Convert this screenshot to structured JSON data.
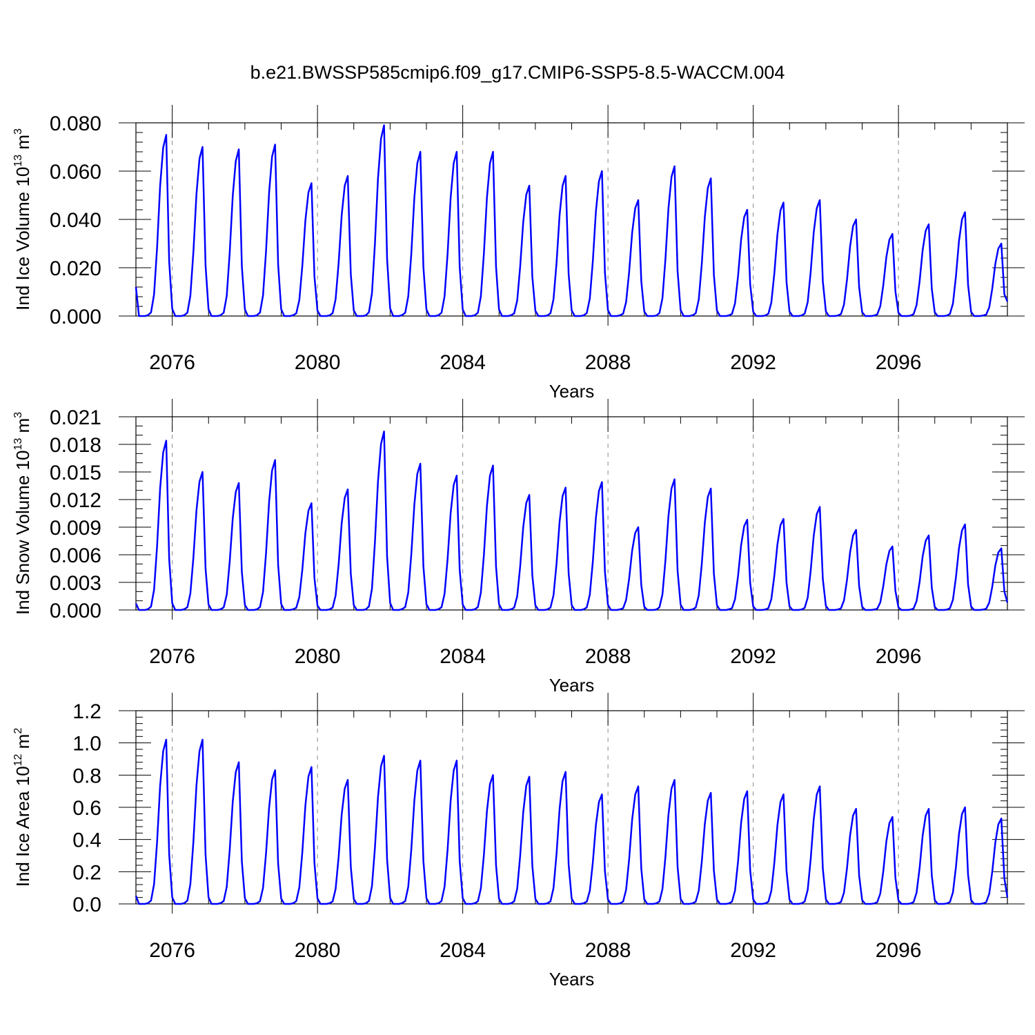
{
  "title": "b.e21.BWSSP585cmip6.f09_g17.CMIP6-SSP5-8.5-WACCM.004",
  "colors": {
    "line": "#0000ff",
    "axis": "#000000",
    "grid": "#888888"
  },
  "panels": [
    {
      "ylabel": {
        "text": "Ind Ice Volume 10",
        "sup": "13",
        "unit": " m",
        "unit_sup": "3"
      },
      "xlabel": "Years",
      "xticks": [
        "2076",
        "2080",
        "2084",
        "2088",
        "2092",
        "2096"
      ],
      "yticks": [
        "0.000",
        "0.020",
        "0.040",
        "0.060",
        "0.080"
      ]
    },
    {
      "ylabel": {
        "text": "Ind Snow Volume 10",
        "sup": "13",
        "unit": " m",
        "unit_sup": "3"
      },
      "xlabel": "Years",
      "xticks": [
        "2076",
        "2080",
        "2084",
        "2088",
        "2092",
        "2096"
      ],
      "yticks": [
        "0.000",
        "0.003",
        "0.006",
        "0.009",
        "0.012",
        "0.015",
        "0.018",
        "0.021"
      ]
    },
    {
      "ylabel": {
        "text": "Ind Ice Area 10",
        "sup": "12",
        "unit": " m",
        "unit_sup": "2"
      },
      "xlabel": "Years",
      "xticks": [
        "2076",
        "2080",
        "2084",
        "2088",
        "2092",
        "2096"
      ],
      "yticks": [
        "0.0",
        "0.2",
        "0.4",
        "0.6",
        "0.8",
        "1.0",
        "1.2"
      ]
    }
  ],
  "chart_data": [
    {
      "type": "line",
      "title": "b.e21.BWSSP585cmip6.f09_g17.CMIP6-SSP5-8.5-WACCM.004",
      "xlabel": "Years",
      "ylabel": "Ind Ice Volume 10^13 m^3",
      "xlim": [
        2075.0,
        2099.0
      ],
      "ylim": [
        0.0,
        0.08
      ],
      "x_major_ticks": [
        2076,
        2080,
        2084,
        2088,
        2092,
        2096
      ],
      "grid": "dashed vertical lines at major x ticks",
      "x_start": 2075.0,
      "x_step_years": 0.0833333,
      "annual_peaks": [
        0.075,
        0.07,
        0.069,
        0.071,
        0.055,
        0.058,
        0.079,
        0.068,
        0.068,
        0.068,
        0.054,
        0.058,
        0.06,
        0.048,
        0.062,
        0.057,
        0.044,
        0.047,
        0.048,
        0.04,
        0.034,
        0.038,
        0.043,
        0.03
      ],
      "start_value": 0.012,
      "end_value": 0.006
    },
    {
      "type": "line",
      "xlabel": "Years",
      "ylabel": "Ind Snow Volume 10^13 m^3",
      "xlim": [
        2075.0,
        2099.0
      ],
      "ylim": [
        0.0,
        0.021
      ],
      "x_major_ticks": [
        2076,
        2080,
        2084,
        2088,
        2092,
        2096
      ],
      "grid": "dashed vertical lines at major x ticks",
      "x_start": 2075.0,
      "x_step_years": 0.0833333,
      "annual_peaks": [
        0.0184,
        0.015,
        0.0138,
        0.0163,
        0.0116,
        0.0131,
        0.0194,
        0.0159,
        0.0146,
        0.0157,
        0.0125,
        0.0133,
        0.0139,
        0.009,
        0.0142,
        0.0132,
        0.0098,
        0.0099,
        0.0112,
        0.0087,
        0.0069,
        0.0081,
        0.0093,
        0.0067
      ],
      "start_value": 0.0007,
      "end_value": 0.0008
    },
    {
      "type": "line",
      "xlabel": "Years",
      "ylabel": "Ind Ice Area 10^12 m^2",
      "xlim": [
        2075.0,
        2099.0
      ],
      "ylim": [
        0.0,
        1.2
      ],
      "x_major_ticks": [
        2076,
        2080,
        2084,
        2088,
        2092,
        2096
      ],
      "grid": "dashed vertical lines at major x ticks",
      "x_start": 2075.0,
      "x_step_years": 0.0833333,
      "annual_peaks": [
        1.02,
        1.02,
        0.88,
        0.83,
        0.85,
        0.77,
        0.92,
        0.89,
        0.89,
        0.8,
        0.79,
        0.82,
        0.68,
        0.73,
        0.77,
        0.69,
        0.7,
        0.68,
        0.73,
        0.59,
        0.54,
        0.59,
        0.6,
        0.53
      ],
      "start_value": 0.05,
      "end_value": 0.04
    }
  ]
}
